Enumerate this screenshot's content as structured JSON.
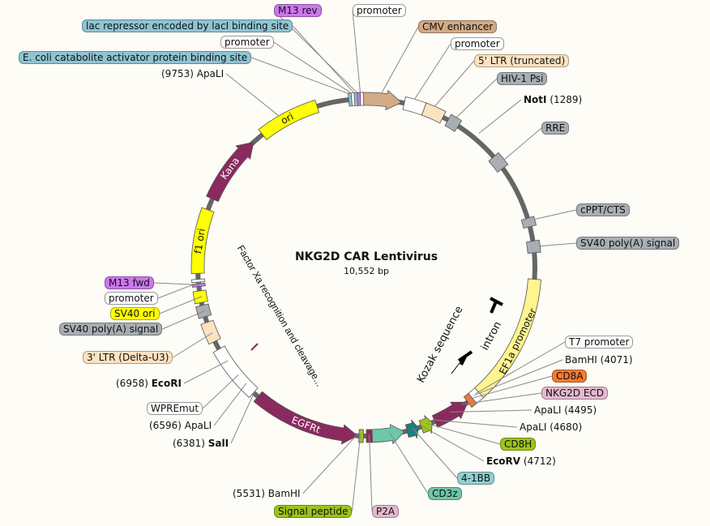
{
  "map": {
    "title": "NKG2D CAR Lentivirus",
    "size": "10,552 bp"
  },
  "colors": {
    "backbone": "#666666",
    "yellow": "#ffff00",
    "purple": "#8b2a5e",
    "tan": "#d2aa86",
    "peach": "#fde2c0",
    "grey": "#a9aeb3",
    "white": "#ffffff",
    "paleyellow": "#fff48f",
    "orange": "#f47a30",
    "green": "#9dc41a",
    "teal": "#1b7f80",
    "seafoam": "#6fc6a8",
    "lilac": "#cc77ee",
    "blue": "#8fc4d4"
  },
  "features": [
    {
      "name": "CMV enhancer",
      "color": "#d2aa86",
      "arrow": true
    },
    {
      "name": "promoter",
      "color": "#ffffff"
    },
    {
      "name": "5' LTR (truncated)",
      "color": "#fde2c0"
    },
    {
      "name": "HIV-1 Psi",
      "color": "#a9aeb3"
    },
    {
      "name": "RRE",
      "color": "#a9aeb3"
    },
    {
      "name": "cPPT/CTS",
      "color": "#a9aeb3"
    },
    {
      "name": "SV40 poly(A) signal",
      "color": "#a9aeb3"
    },
    {
      "name": "EF1a promoter",
      "color": "#fff48f"
    },
    {
      "name": "T7 promoter",
      "color": "#ffffff"
    },
    {
      "name": "CD8A",
      "color": "#f47a30"
    },
    {
      "name": "NKG2D ECD",
      "color": "#8b2a5e",
      "arrow": true
    },
    {
      "name": "CD8H",
      "color": "#9dc41a",
      "arrow": true
    },
    {
      "name": "4-1BB",
      "color": "#1b7f80",
      "arrow": true
    },
    {
      "name": "CD3z",
      "color": "#6fc6a8",
      "arrow": true
    },
    {
      "name": "P2A",
      "color": "#8b2a5e"
    },
    {
      "name": "Signal peptide",
      "color": "#9dc41a"
    },
    {
      "name": "EGFRt",
      "color": "#8b2a5e",
      "arrow": true
    },
    {
      "name": "WPREmut",
      "color": "#ffffff"
    },
    {
      "name": "3' LTR (Delta-U3)",
      "color": "#fde2c0"
    },
    {
      "name": "SV40 poly(A) signal",
      "color": "#a9aeb3"
    },
    {
      "name": "SV40 ori",
      "color": "#ffff00"
    },
    {
      "name": "M13 fwd",
      "color": "#cc77ee"
    },
    {
      "name": "promoter",
      "color": "#ffffff"
    },
    {
      "name": "f1 ori",
      "color": "#ffff00"
    },
    {
      "name": "Kana",
      "color": "#8b2a5e",
      "arrow": true
    },
    {
      "name": "ori",
      "color": "#ffff00"
    },
    {
      "name": "E. coli catabolite activator protein binding site",
      "color": "#8fc4d4"
    },
    {
      "name": "promoter",
      "color": "#ffffff"
    },
    {
      "name": "lac repressor encoded by lacI binding site",
      "color": "#8fc4d4"
    },
    {
      "name": "M13 rev",
      "color": "#cc77ee"
    },
    {
      "name": "promoter",
      "color": "#ffffff"
    }
  ],
  "sites": [
    {
      "name": "NotI",
      "pos": "(1289)",
      "bold": true
    },
    {
      "name": "BamHI",
      "pos": "(4071)"
    },
    {
      "name": "ApaLI",
      "pos": "(4495)"
    },
    {
      "name": "ApaLI",
      "pos": "(4680)"
    },
    {
      "name": "EcoRV",
      "pos": "(4712)",
      "bold": true
    },
    {
      "name": "BamHI",
      "pos": "(5531)"
    },
    {
      "name": "SalI",
      "pos": "(6381)",
      "bold": true
    },
    {
      "name": "ApaLI",
      "pos": "(6596)"
    },
    {
      "name": "EcoRI",
      "pos": "(6958)",
      "bold": true
    },
    {
      "name": "ApaLI",
      "pos": "(9753)"
    }
  ],
  "inner": {
    "factor_xa": "Factor Xa recognition and cleavage...",
    "kozak": "Kozak sequence",
    "intron": "intron"
  }
}
